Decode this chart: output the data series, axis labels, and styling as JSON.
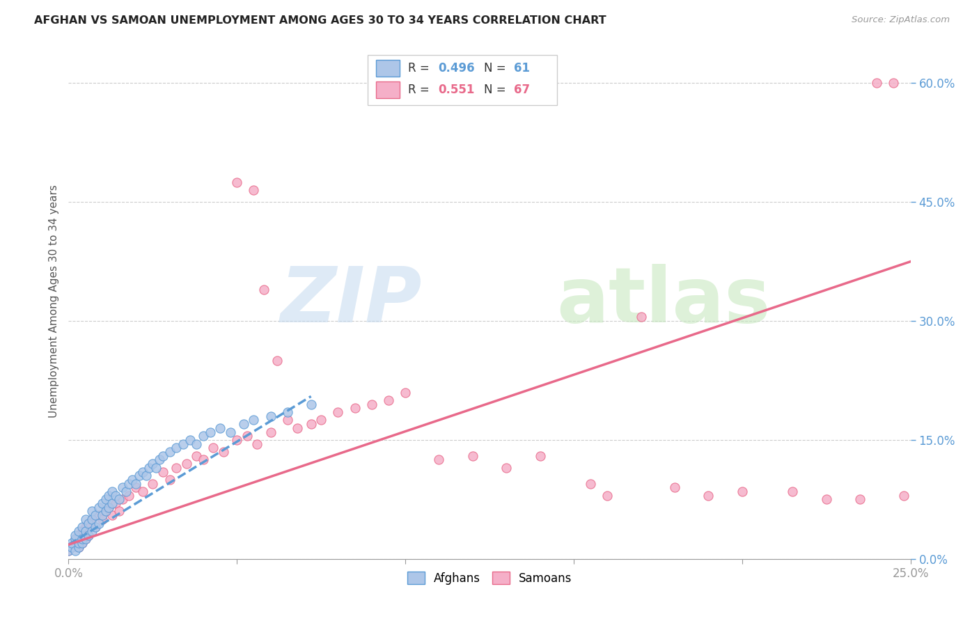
{
  "title": "AFGHAN VS SAMOAN UNEMPLOYMENT AMONG AGES 30 TO 34 YEARS CORRELATION CHART",
  "source": "Source: ZipAtlas.com",
  "ylabel": "Unemployment Among Ages 30 to 34 years",
  "xlim": [
    0,
    0.25
  ],
  "ylim": [
    0,
    0.65
  ],
  "right_yticks": [
    0.0,
    0.15,
    0.3,
    0.45,
    0.6
  ],
  "right_yticklabels": [
    "0.0%",
    "15.0%",
    "30.0%",
    "45.0%",
    "60.0%"
  ],
  "xticks": [
    0.0,
    0.05,
    0.1,
    0.15,
    0.2,
    0.25
  ],
  "xticklabels": [
    "0.0%",
    "",
    "",
    "",
    "",
    "25.0%"
  ],
  "afghan_R": 0.496,
  "afghan_N": 61,
  "samoan_R": 0.551,
  "samoan_N": 67,
  "afghan_color": "#adc6e8",
  "samoan_color": "#f5afc8",
  "afghan_line_color": "#5b9bd5",
  "samoan_line_color": "#e8698a",
  "background_color": "#ffffff",
  "afghan_x": [
    0.0,
    0.001,
    0.001,
    0.002,
    0.002,
    0.002,
    0.003,
    0.003,
    0.003,
    0.004,
    0.004,
    0.004,
    0.005,
    0.005,
    0.005,
    0.006,
    0.006,
    0.007,
    0.007,
    0.007,
    0.008,
    0.008,
    0.009,
    0.009,
    0.01,
    0.01,
    0.011,
    0.011,
    0.012,
    0.012,
    0.013,
    0.013,
    0.014,
    0.015,
    0.016,
    0.017,
    0.018,
    0.019,
    0.02,
    0.021,
    0.022,
    0.023,
    0.024,
    0.025,
    0.026,
    0.027,
    0.028,
    0.03,
    0.032,
    0.034,
    0.036,
    0.038,
    0.04,
    0.042,
    0.045,
    0.048,
    0.052,
    0.055,
    0.06,
    0.065,
    0.072
  ],
  "afghan_y": [
    0.01,
    0.015,
    0.02,
    0.01,
    0.025,
    0.03,
    0.015,
    0.02,
    0.035,
    0.02,
    0.025,
    0.04,
    0.025,
    0.035,
    0.05,
    0.03,
    0.045,
    0.035,
    0.05,
    0.06,
    0.04,
    0.055,
    0.045,
    0.065,
    0.055,
    0.07,
    0.06,
    0.075,
    0.065,
    0.08,
    0.07,
    0.085,
    0.08,
    0.075,
    0.09,
    0.085,
    0.095,
    0.1,
    0.095,
    0.105,
    0.11,
    0.105,
    0.115,
    0.12,
    0.115,
    0.125,
    0.13,
    0.135,
    0.14,
    0.145,
    0.15,
    0.145,
    0.155,
    0.16,
    0.165,
    0.16,
    0.17,
    0.175,
    0.18,
    0.185,
    0.195
  ],
  "samoan_x": [
    0.0,
    0.001,
    0.002,
    0.002,
    0.003,
    0.003,
    0.004,
    0.004,
    0.005,
    0.005,
    0.006,
    0.006,
    0.007,
    0.008,
    0.009,
    0.01,
    0.011,
    0.012,
    0.013,
    0.014,
    0.015,
    0.016,
    0.018,
    0.02,
    0.022,
    0.025,
    0.028,
    0.03,
    0.032,
    0.035,
    0.038,
    0.04,
    0.043,
    0.046,
    0.05,
    0.053,
    0.056,
    0.06,
    0.065,
    0.068,
    0.072,
    0.075,
    0.08,
    0.085,
    0.09,
    0.095,
    0.1,
    0.11,
    0.12,
    0.13,
    0.14,
    0.155,
    0.16,
    0.17,
    0.18,
    0.19,
    0.2,
    0.215,
    0.225,
    0.235,
    0.24,
    0.245,
    0.248,
    0.05,
    0.055,
    0.058,
    0.062
  ],
  "samoan_y": [
    0.01,
    0.015,
    0.02,
    0.025,
    0.03,
    0.015,
    0.02,
    0.035,
    0.025,
    0.04,
    0.03,
    0.045,
    0.05,
    0.04,
    0.055,
    0.05,
    0.06,
    0.065,
    0.055,
    0.07,
    0.06,
    0.075,
    0.08,
    0.09,
    0.085,
    0.095,
    0.11,
    0.1,
    0.115,
    0.12,
    0.13,
    0.125,
    0.14,
    0.135,
    0.15,
    0.155,
    0.145,
    0.16,
    0.175,
    0.165,
    0.17,
    0.175,
    0.185,
    0.19,
    0.195,
    0.2,
    0.21,
    0.125,
    0.13,
    0.115,
    0.13,
    0.095,
    0.08,
    0.305,
    0.09,
    0.08,
    0.085,
    0.085,
    0.075,
    0.075,
    0.6,
    0.6,
    0.08,
    0.475,
    0.465,
    0.34,
    0.25
  ],
  "afghan_trend_x": [
    0.0,
    0.072
  ],
  "afghan_trend_y": [
    0.018,
    0.205
  ],
  "samoan_trend_x": [
    0.0,
    0.25
  ],
  "samoan_trend_y": [
    0.018,
    0.375
  ]
}
